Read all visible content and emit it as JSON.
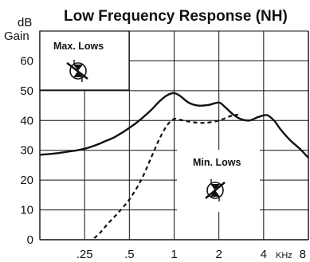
{
  "chart_data": {
    "type": "line",
    "title": "Low Frequency Response (NH)",
    "ylabel_unit": "dB",
    "ylabel": "Gain",
    "xlabel_unit": "KHz",
    "x_scale": "log2",
    "xlim": [
      0.125,
      8
    ],
    "ylim": [
      0,
      70
    ],
    "y_ticks": [
      0,
      10,
      20,
      30,
      40,
      50,
      60
    ],
    "x_ticks": [
      {
        "value": 0.25,
        "label": ".25"
      },
      {
        "value": 0.5,
        "label": ".5"
      },
      {
        "value": 1,
        "label": "1"
      },
      {
        "value": 2,
        "label": "2"
      },
      {
        "value": 4,
        "label": "4"
      },
      {
        "value": 8,
        "label": "8"
      }
    ],
    "grid": true,
    "series": [
      {
        "name": "Max. Lows",
        "style": "solid",
        "color": "#111111",
        "points": [
          [
            0.125,
            28.5
          ],
          [
            0.15,
            28.8
          ],
          [
            0.18,
            29.3
          ],
          [
            0.21,
            29.8
          ],
          [
            0.25,
            30.5
          ],
          [
            0.3,
            31.8
          ],
          [
            0.35,
            33.2
          ],
          [
            0.4,
            34.5
          ],
          [
            0.5,
            37.5
          ],
          [
            0.6,
            40.5
          ],
          [
            0.7,
            43.5
          ],
          [
            0.8,
            46.5
          ],
          [
            0.9,
            48.5
          ],
          [
            1.0,
            49.2
          ],
          [
            1.1,
            48.2
          ],
          [
            1.25,
            46.0
          ],
          [
            1.45,
            45.0
          ],
          [
            1.7,
            45.2
          ],
          [
            2.0,
            46.0
          ],
          [
            2.2,
            44.5
          ],
          [
            2.5,
            42.0
          ],
          [
            2.8,
            40.5
          ],
          [
            3.2,
            40.0
          ],
          [
            3.7,
            41.2
          ],
          [
            4.2,
            41.8
          ],
          [
            4.7,
            40.0
          ],
          [
            5.2,
            37.0
          ],
          [
            6.0,
            33.5
          ],
          [
            7.0,
            30.5
          ],
          [
            8.0,
            27.5
          ]
        ]
      },
      {
        "name": "Min. Lows",
        "style": "dashed",
        "color": "#111111",
        "points": [
          [
            0.29,
            0.5
          ],
          [
            0.32,
            2.5
          ],
          [
            0.36,
            5.5
          ],
          [
            0.42,
            9.0
          ],
          [
            0.5,
            13.5
          ],
          [
            0.6,
            20.0
          ],
          [
            0.7,
            27.5
          ],
          [
            0.8,
            34.0
          ],
          [
            0.9,
            38.5
          ],
          [
            1.0,
            40.5
          ],
          [
            1.1,
            40.2
          ],
          [
            1.3,
            39.5
          ],
          [
            1.6,
            39.2
          ],
          [
            2.0,
            40.0
          ],
          [
            2.4,
            41.5
          ],
          [
            2.7,
            42.0
          ]
        ]
      }
    ],
    "annotations": [
      {
        "id": "max-lows",
        "text": "Max. Lows",
        "icon": "knob-dial-icon-max"
      },
      {
        "id": "min-lows",
        "text": "Min. Lows",
        "icon": "knob-dial-icon-min"
      }
    ]
  }
}
